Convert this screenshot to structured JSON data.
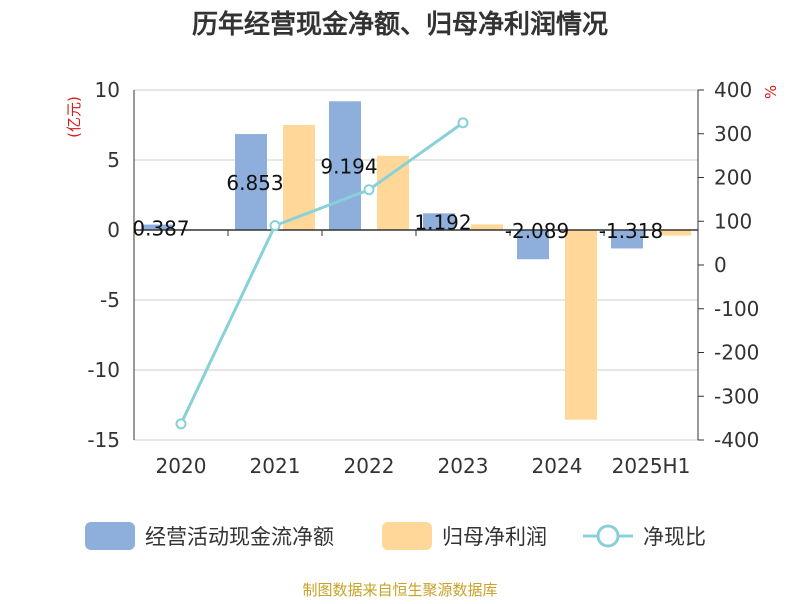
{
  "chart_data": {
    "type": "bar",
    "title": "历年经营现金净额、归母净利润情况",
    "categories": [
      "2020",
      "2021",
      "2022",
      "2023",
      "2024",
      "2025H1"
    ],
    "y_left": {
      "unit": "(亿元)",
      "range": [
        -15,
        10
      ],
      "ticks": [
        10,
        5,
        0,
        -5,
        -10,
        -15
      ]
    },
    "y_right": {
      "unit": "%",
      "range": [
        -400,
        400
      ],
      "ticks": [
        400,
        300,
        200,
        100,
        0,
        -100,
        -200,
        -300,
        -400
      ]
    },
    "grid": true,
    "legend_position": "bottom",
    "series": [
      {
        "name": "经营活动现金流净额",
        "type": "bar",
        "axis": "left",
        "color": "#8eaedc",
        "values": [
          0.387,
          6.853,
          9.194,
          1.192,
          -2.089,
          -1.318
        ],
        "labels": [
          "0.387",
          "6.853",
          "9.194",
          "1.192",
          "-2.089",
          "-1.318"
        ]
      },
      {
        "name": "归母净利润",
        "type": "bar",
        "axis": "left",
        "color": "#ffd899",
        "values": [
          0.05,
          7.5,
          5.3,
          0.4,
          -13.55,
          -0.4
        ]
      },
      {
        "name": "净现比",
        "type": "line",
        "axis": "right",
        "color": "#88d1d8",
        "values": [
          -363,
          90,
          172,
          325,
          null,
          null
        ]
      }
    ]
  },
  "source": "制图数据来自恒生聚源数据库"
}
